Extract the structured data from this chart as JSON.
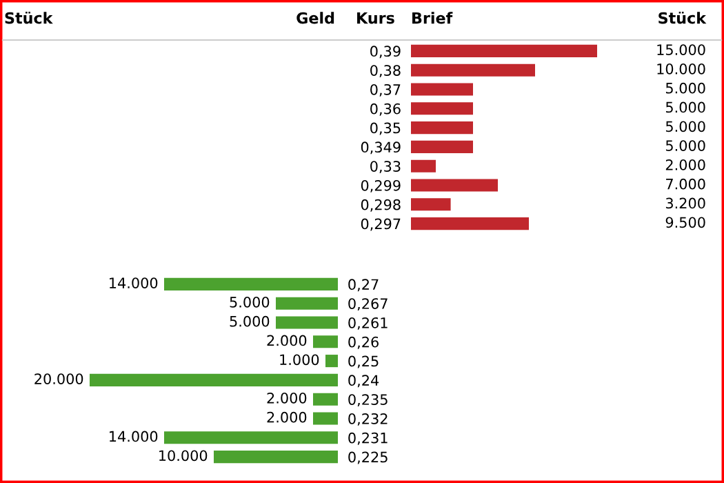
{
  "chart_data": [
    {
      "type": "bar",
      "orientation": "horizontal",
      "annotations": [
        "Stück",
        "Geld",
        "Kurs",
        "Brief",
        "Stück"
      ],
      "categories": [
        "0,39",
        "0,38",
        "0,37",
        "0,36",
        "0,35",
        "0,349",
        "0,33",
        "0,299",
        "0,298",
        "0,297"
      ],
      "values": [
        15000,
        10000,
        5000,
        5000,
        5000,
        5000,
        2000,
        7000,
        3200,
        9500
      ],
      "value_labels": [
        "15.000",
        "10.000",
        "5.000",
        "5.000",
        "5.000",
        "5.000",
        "2.000",
        "7.000",
        "3.200",
        "9.500"
      ],
      "color": "#c1272d",
      "tick_labels": "y",
      "grid": false,
      "legend": false
    },
    {
      "type": "bar",
      "orientation": "horizontal",
      "categories": [
        "0,27",
        "0,267",
        "0,261",
        "0,26",
        "0,25",
        "0,24",
        "0,235",
        "0,232",
        "0,231",
        "0,225"
      ],
      "values": [
        14000,
        5000,
        5000,
        2000,
        1000,
        20000,
        2000,
        2000,
        14000,
        10000
      ],
      "value_labels": [
        "14.000",
        "5.000",
        "5.000",
        "2.000",
        "1.000",
        "20.000",
        "2.000",
        "2.000",
        "14.000",
        "10.000"
      ],
      "color": "#4ca22f",
      "tick_labels": "y",
      "grid": false,
      "legend": false
    }
  ]
}
